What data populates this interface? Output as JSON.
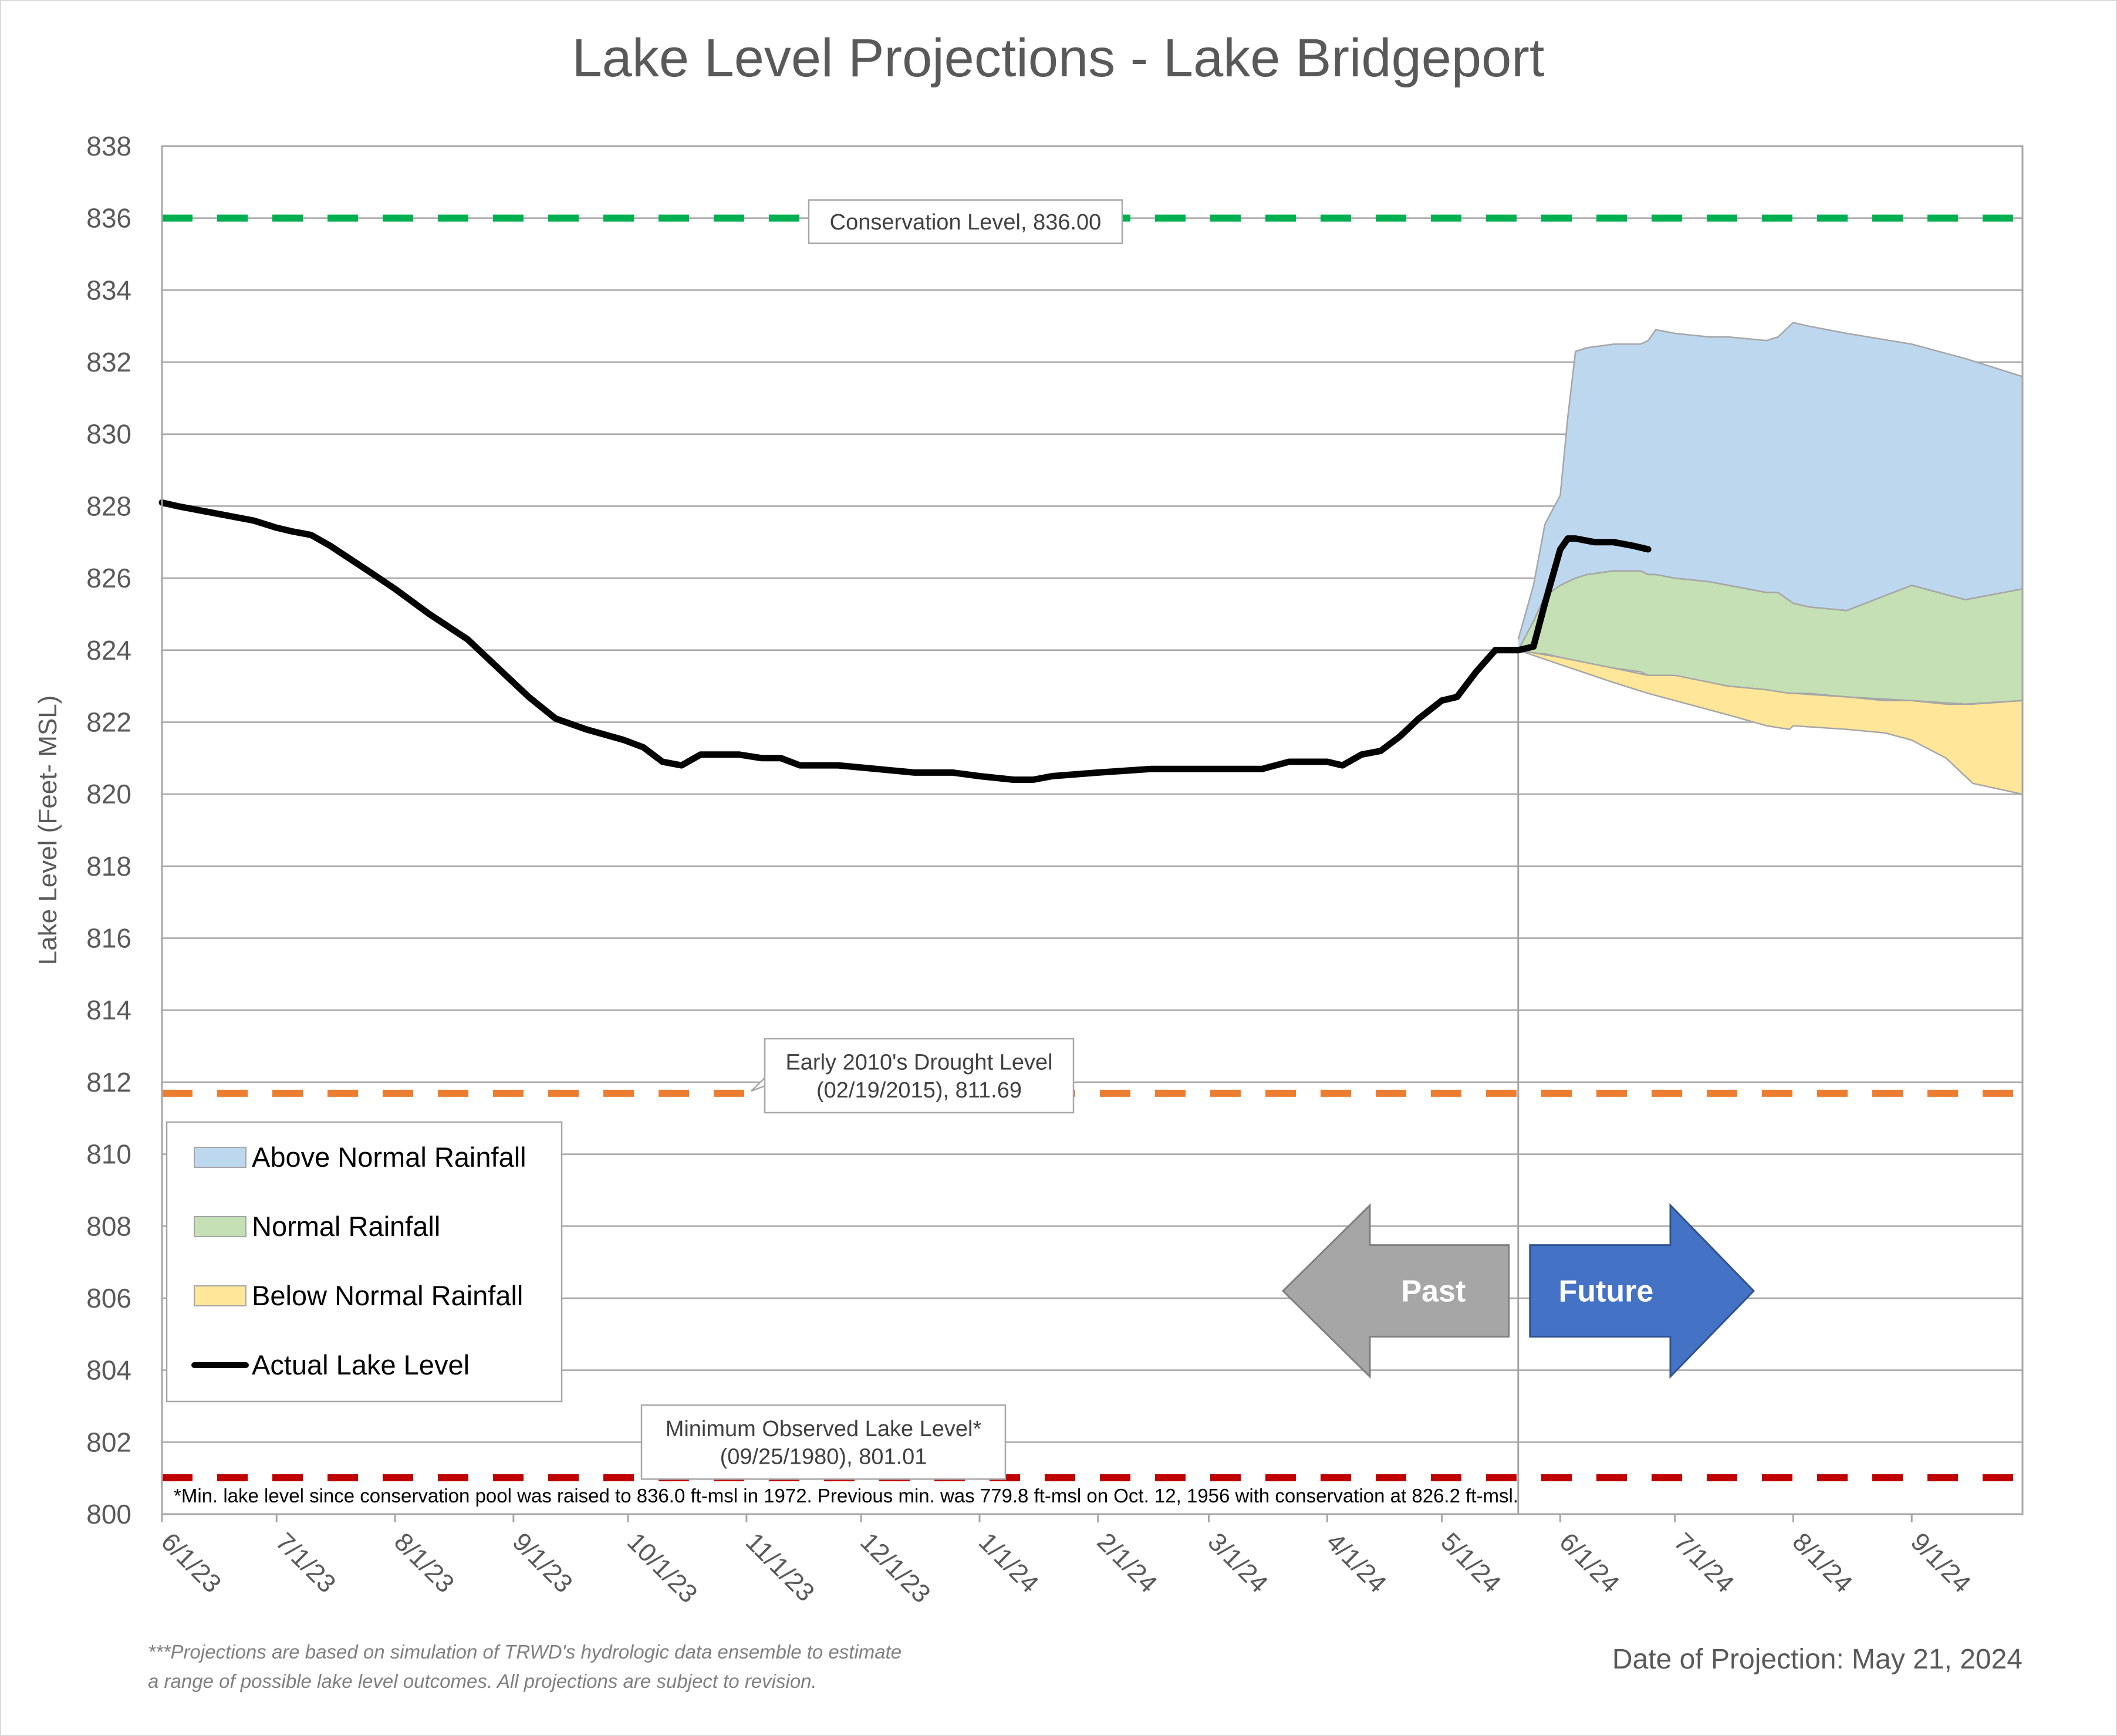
{
  "chart_data": {
    "type": "area",
    "title": "Lake Level Projections - Lake Bridgeport",
    "ylabel": "Lake Level (Feet- MSL)",
    "ylim": [
      800,
      838
    ],
    "ytick_step": 2,
    "x_ticks": [
      "6/1/23",
      "7/1/23",
      "8/1/23",
      "9/1/23",
      "10/1/23",
      "11/1/23",
      "12/1/23",
      "1/1/24",
      "2/1/24",
      "3/1/24",
      "4/1/24",
      "5/1/24",
      "6/1/24",
      "7/1/24",
      "8/1/24",
      "9/1/24"
    ],
    "x_start": "2023-06-01",
    "x_end": "2024-09-30",
    "projection_date": "2024-05-21",
    "reference_lines": [
      {
        "name": "conservation",
        "value": 836.0,
        "color": "#00b050",
        "label": "Conservation Level, 836.00"
      },
      {
        "name": "drought",
        "value": 811.69,
        "color": "#ed7d31",
        "label": [
          "Early 2010's Drought Level",
          "(02/19/2015), 811.69"
        ]
      },
      {
        "name": "minimum",
        "value": 801.01,
        "color": "#c00000",
        "label": [
          "Minimum Observed Lake Level*",
          "(09/25/1980), 801.01"
        ]
      }
    ],
    "series": [
      {
        "name": "Above Normal Rainfall",
        "color": "#bdd7ee",
        "x": [
          "2024-05-21",
          "2024-05-25",
          "2024-05-28",
          "2024-06-01",
          "2024-06-03",
          "2024-06-05",
          "2024-06-08",
          "2024-06-15",
          "2024-06-22",
          "2024-06-24",
          "2024-06-26",
          "2024-07-01",
          "2024-07-10",
          "2024-07-15",
          "2024-07-25",
          "2024-07-28",
          "2024-08-01",
          "2024-08-05",
          "2024-08-15",
          "2024-09-01",
          "2024-09-15",
          "2024-09-30"
        ],
        "upper": [
          824.3,
          825.8,
          827.5,
          828.3,
          830.5,
          832.3,
          832.4,
          832.5,
          832.5,
          832.6,
          832.9,
          832.8,
          832.7,
          832.7,
          832.6,
          832.7,
          833.1,
          833.0,
          832.8,
          832.5,
          832.1,
          831.6
        ],
        "lower": [
          824.0,
          824.8,
          825.5,
          825.8,
          825.9,
          826.0,
          826.1,
          826.2,
          826.2,
          826.1,
          826.1,
          826.0,
          825.9,
          825.8,
          825.6,
          825.6,
          825.3,
          825.2,
          825.1,
          825.8,
          825.4,
          825.7
        ]
      },
      {
        "name": "Normal Rainfall",
        "color": "#c5e0b4",
        "x": [
          "2024-05-21",
          "2024-05-25",
          "2024-05-28",
          "2024-06-01",
          "2024-06-03",
          "2024-06-05",
          "2024-06-08",
          "2024-06-15",
          "2024-06-22",
          "2024-06-24",
          "2024-06-26",
          "2024-07-01",
          "2024-07-10",
          "2024-07-15",
          "2024-07-25",
          "2024-07-28",
          "2024-08-01",
          "2024-08-05",
          "2024-08-15",
          "2024-09-01",
          "2024-09-15",
          "2024-09-30"
        ],
        "upper": [
          824.0,
          824.8,
          825.5,
          825.8,
          825.9,
          826.0,
          826.1,
          826.2,
          826.2,
          826.1,
          826.1,
          826.0,
          825.9,
          825.8,
          825.6,
          825.6,
          825.3,
          825.2,
          825.1,
          825.8,
          825.4,
          825.7
        ],
        "lower": [
          824.0,
          823.9,
          823.9,
          823.8,
          823.7,
          823.7,
          823.6,
          823.5,
          823.4,
          823.3,
          823.3,
          823.3,
          823.1,
          823.0,
          822.9,
          822.8,
          822.8,
          822.8,
          822.7,
          822.6,
          822.5,
          822.6
        ]
      },
      {
        "name": "Below Normal Rainfall",
        "color": "#ffe699",
        "x": [
          "2024-05-21",
          "2024-06-01",
          "2024-06-15",
          "2024-06-24",
          "2024-07-01",
          "2024-07-15",
          "2024-07-25",
          "2024-07-31",
          "2024-08-01",
          "2024-08-15",
          "2024-08-25",
          "2024-09-01",
          "2024-09-10",
          "2024-09-17",
          "2024-09-30"
        ],
        "upper": [
          824.0,
          823.8,
          823.5,
          823.3,
          823.3,
          823.0,
          822.9,
          822.8,
          822.8,
          822.7,
          822.6,
          822.6,
          822.5,
          822.5,
          822.6
        ],
        "lower": [
          824.0,
          823.6,
          823.1,
          822.8,
          822.6,
          822.2,
          821.9,
          821.8,
          821.9,
          821.8,
          821.7,
          821.5,
          821.0,
          820.3,
          820.0
        ]
      },
      {
        "name": "Actual Lake Level",
        "color": "#000000",
        "x": [
          "2023-06-01",
          "2023-06-05",
          "2023-06-15",
          "2023-06-25",
          "2023-07-01",
          "2023-07-05",
          "2023-07-10",
          "2023-07-15",
          "2023-07-25",
          "2023-08-01",
          "2023-08-10",
          "2023-08-20",
          "2023-08-30",
          "2023-09-05",
          "2023-09-12",
          "2023-09-20",
          "2023-09-30",
          "2023-10-05",
          "2023-10-10",
          "2023-10-15",
          "2023-10-20",
          "2023-10-25",
          "2023-10-30",
          "2023-11-05",
          "2023-11-10",
          "2023-11-15",
          "2023-11-25",
          "2023-12-05",
          "2023-12-15",
          "2023-12-25",
          "2024-01-01",
          "2024-01-10",
          "2024-01-15",
          "2024-01-20",
          "2024-02-01",
          "2024-02-15",
          "2024-03-01",
          "2024-03-15",
          "2024-03-22",
          "2024-04-01",
          "2024-04-05",
          "2024-04-10",
          "2024-04-15",
          "2024-04-20",
          "2024-04-25",
          "2024-05-01",
          "2024-05-05",
          "2024-05-10",
          "2024-05-15",
          "2024-05-21",
          "2024-05-25",
          "2024-05-28",
          "2024-06-01",
          "2024-06-03",
          "2024-06-05",
          "2024-06-10",
          "2024-06-15",
          "2024-06-20",
          "2024-06-24"
        ],
        "values": [
          828.1,
          828.0,
          827.8,
          827.6,
          827.4,
          827.3,
          827.2,
          826.9,
          826.2,
          825.7,
          825.0,
          824.3,
          823.3,
          822.7,
          822.1,
          821.8,
          821.5,
          821.3,
          820.9,
          820.8,
          821.1,
          821.1,
          821.1,
          821.0,
          821.0,
          820.8,
          820.8,
          820.7,
          820.6,
          820.6,
          820.5,
          820.4,
          820.4,
          820.5,
          820.6,
          820.7,
          820.7,
          820.7,
          820.9,
          820.9,
          820.8,
          821.1,
          821.2,
          821.6,
          822.1,
          822.6,
          822.7,
          823.4,
          824.0,
          824.0,
          824.1,
          825.3,
          826.8,
          827.1,
          827.1,
          827.0,
          827.0,
          826.9,
          826.8
        ]
      }
    ],
    "arrows": {
      "past": "Past",
      "future": "Future"
    },
    "legend_position": "lower-left"
  },
  "footnote": "*Min. lake level since conservation pool was raised to 836.0 ft-msl in 1972.  Previous min. was 779.8 ft-msl on Oct. 12, 1956 with conservation at 826.2 ft-msl.",
  "disclaimer": [
    "***Projections are based on simulation of TRWD's hydrologic data ensemble to estimate",
    "a range of possible lake level outcomes.  All projections are subject to revision."
  ],
  "date_of_projection": "Date of Projection: May 21, 2024",
  "colors": {
    "past_arrow": "#a6a6a6",
    "future_arrow": "#4472c4",
    "grid": "#a6a6a6",
    "text": "#595959"
  }
}
